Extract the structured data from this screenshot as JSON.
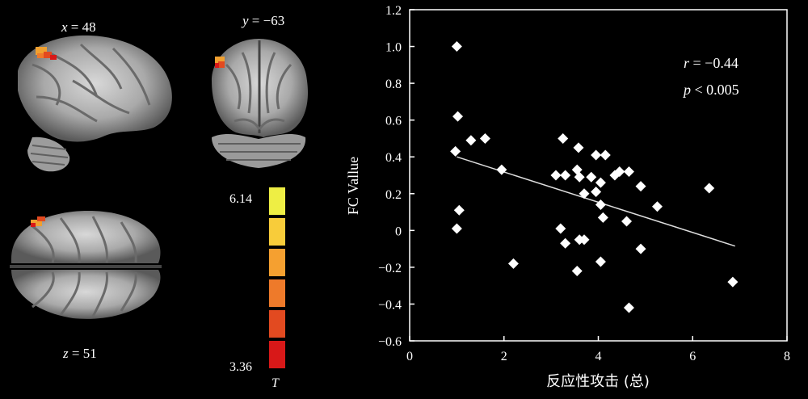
{
  "views": {
    "sagittal": {
      "axis": "x",
      "eq": " = 48"
    },
    "coronal": {
      "axis": "y",
      "eq": " = −63"
    },
    "axial": {
      "axis": "z",
      "eq": " = 51"
    }
  },
  "colorbar": {
    "max": "6.14",
    "min": "3.36",
    "label": "T",
    "colors": [
      "#eeee44",
      "#f8cc3a",
      "#f5a030",
      "#ee7a2a",
      "#e24a20",
      "#d81818"
    ]
  },
  "chart_data": {
    "type": "scatter",
    "xlabel": "反应性攻击 (总)",
    "ylabel": "FC Vallue",
    "xlim": [
      0,
      8
    ],
    "ylim": [
      -0.6,
      1.2
    ],
    "xticks": [
      "0",
      "2",
      "4",
      "6",
      "8"
    ],
    "yticks": [
      "−0.6",
      "−0.4",
      "−0.2",
      "0",
      "0.2",
      "0.4",
      "0.6",
      "0.8",
      "1.0",
      "1.2"
    ],
    "annotation_r": {
      "label": "r",
      "value": " = −0.44"
    },
    "annotation_p": {
      "label": "p",
      "value": " < 0.005"
    },
    "trend": {
      "x": [
        1.0,
        6.9
      ],
      "y": [
        0.4,
        -0.085
      ]
    },
    "points": [
      [
        1.0,
        1.0
      ],
      [
        1.02,
        0.62
      ],
      [
        0.97,
        0.43
      ],
      [
        1.3,
        0.49
      ],
      [
        1.6,
        0.5
      ],
      [
        1.05,
        0.11
      ],
      [
        1.0,
        0.01
      ],
      [
        1.95,
        0.33
      ],
      [
        2.2,
        -0.18
      ],
      [
        3.25,
        0.5
      ],
      [
        3.1,
        0.3
      ],
      [
        3.3,
        0.3
      ],
      [
        3.55,
        0.33
      ],
      [
        3.58,
        0.45
      ],
      [
        3.6,
        0.29
      ],
      [
        3.85,
        0.29
      ],
      [
        3.95,
        0.41
      ],
      [
        4.15,
        0.41
      ],
      [
        3.7,
        0.2
      ],
      [
        3.95,
        0.21
      ],
      [
        4.05,
        0.26
      ],
      [
        4.35,
        0.3
      ],
      [
        4.45,
        0.32
      ],
      [
        4.65,
        0.32
      ],
      [
        4.9,
        0.24
      ],
      [
        5.25,
        0.13
      ],
      [
        4.05,
        0.14
      ],
      [
        4.1,
        0.07
      ],
      [
        4.6,
        0.05
      ],
      [
        3.2,
        0.01
      ],
      [
        3.3,
        -0.07
      ],
      [
        3.6,
        -0.05
      ],
      [
        3.7,
        -0.05
      ],
      [
        4.05,
        -0.17
      ],
      [
        4.9,
        -0.1
      ],
      [
        3.55,
        -0.22
      ],
      [
        4.65,
        -0.42
      ],
      [
        6.35,
        0.23
      ],
      [
        6.85,
        -0.28
      ]
    ]
  }
}
